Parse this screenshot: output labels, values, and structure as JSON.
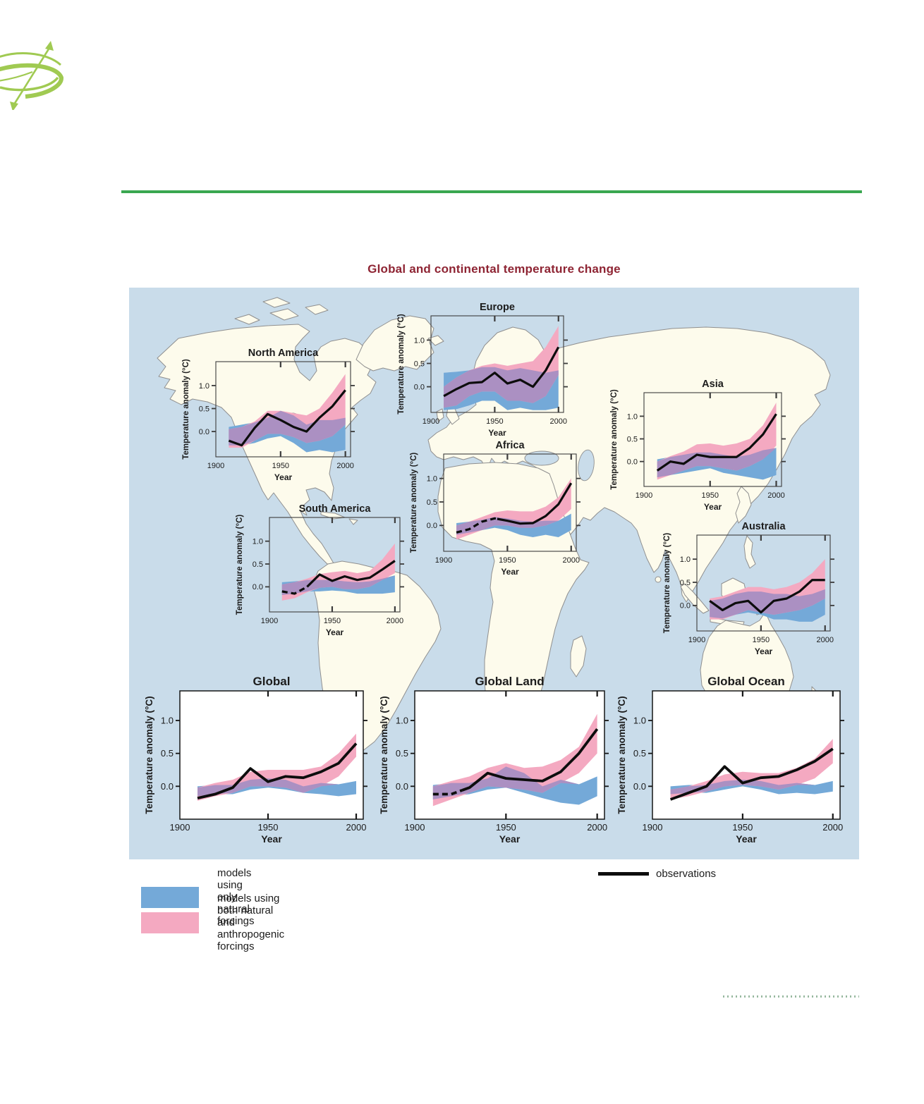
{
  "page": {
    "background": "#ffffff"
  },
  "logo": {
    "color": "#a0ca52"
  },
  "rules": {
    "top_rule_color": "#3aa750",
    "dotted_rule_color": "#98b9a0"
  },
  "figure": {
    "title": "Global and continental temperature change",
    "title_color": "#8e2433",
    "ocean_color": "#c9dcea",
    "land_color": "#fdfbec",
    "land_border_color": "#8f8f8f"
  },
  "legend": {
    "natural": {
      "label": "models using only natural forcings",
      "color": "#74a9d8"
    },
    "combined": {
      "label": "models using both natural and anthropogenic forcings",
      "color": "#f4a9c1"
    },
    "observations": {
      "label": "observations",
      "color": "#0d0d0d"
    }
  },
  "colors": {
    "natural_band": "#74a9d8",
    "combined_band": "#f4a9c1",
    "overlap_band": "#ab90c2",
    "observations_line": "#0d0d0d",
    "frame_regional": "#3c3c3c",
    "frame_global": "#161616",
    "text": "#1c1c1c"
  },
  "chart_data": [
    {
      "type": "area+line",
      "title": "North America",
      "ylabel": "Temperature anomaly (°C)",
      "xlabel": "Year",
      "xticks": [
        1900,
        1950,
        2000
      ],
      "yticks": [
        "1.0",
        "0.5",
        "0.0"
      ],
      "xlim": [
        1900,
        2004
      ],
      "ylim": [
        -0.55,
        1.52
      ],
      "years": [
        1910,
        1920,
        1930,
        1940,
        1950,
        1960,
        1970,
        1980,
        1990,
        2000
      ],
      "observations": [
        -0.2,
        -0.3,
        0.08,
        0.38,
        0.25,
        0.1,
        0.0,
        0.3,
        0.55,
        0.9
      ],
      "dashed_until": null,
      "natural_band": {
        "upper": [
          0.1,
          0.15,
          0.2,
          0.3,
          0.45,
          0.35,
          0.15,
          0.25,
          0.25,
          0.3
        ],
        "lower": [
          -0.3,
          -0.3,
          -0.25,
          -0.15,
          -0.1,
          -0.25,
          -0.45,
          -0.4,
          -0.45,
          -0.4
        ]
      },
      "combined_band": {
        "upper": [
          0.05,
          0.1,
          0.22,
          0.45,
          0.45,
          0.4,
          0.35,
          0.5,
          0.85,
          1.25
        ],
        "lower": [
          -0.35,
          -0.35,
          -0.2,
          -0.05,
          -0.05,
          -0.12,
          -0.25,
          -0.2,
          -0.1,
          0.15
        ]
      }
    },
    {
      "type": "area+line",
      "title": "Europe",
      "ylabel": "Temperature anomaly (°C)",
      "xlabel": "Year",
      "xticks": [
        1900,
        1950,
        2000
      ],
      "yticks": [
        "1.0",
        "0.5",
        "0.0"
      ],
      "xlim": [
        1900,
        2004
      ],
      "ylim": [
        -0.55,
        1.52
      ],
      "years": [
        1910,
        1920,
        1930,
        1940,
        1950,
        1960,
        1970,
        1980,
        1990,
        2000
      ],
      "observations": [
        -0.2,
        -0.05,
        0.08,
        0.1,
        0.3,
        0.07,
        0.15,
        0.0,
        0.35,
        0.85
      ],
      "dashed_until": null,
      "natural_band": {
        "upper": [
          0.3,
          0.32,
          0.35,
          0.42,
          0.42,
          0.35,
          0.4,
          0.35,
          0.3,
          0.35
        ],
        "lower": [
          -0.5,
          -0.48,
          -0.4,
          -0.3,
          -0.3,
          -0.5,
          -0.45,
          -0.5,
          -0.5,
          -0.45
        ]
      },
      "combined_band": {
        "upper": [
          0.0,
          0.2,
          0.35,
          0.45,
          0.5,
          0.45,
          0.5,
          0.55,
          0.85,
          1.3
        ],
        "lower": [
          -0.45,
          -0.4,
          -0.2,
          -0.1,
          -0.1,
          -0.3,
          -0.3,
          -0.35,
          -0.2,
          0.25
        ]
      }
    },
    {
      "type": "area+line",
      "title": "Asia",
      "ylabel": "Temperature anomaly (°C)",
      "xlabel": "Year",
      "xticks": [
        1900,
        1950,
        2000
      ],
      "yticks": [
        "1.0",
        "0.5",
        "0.0"
      ],
      "xlim": [
        1900,
        2004
      ],
      "ylim": [
        -0.55,
        1.52
      ],
      "years": [
        1910,
        1920,
        1930,
        1940,
        1950,
        1960,
        1970,
        1980,
        1990,
        2000
      ],
      "observations": [
        -0.2,
        0.0,
        -0.05,
        0.15,
        0.1,
        0.1,
        0.1,
        0.3,
        0.6,
        1.05
      ],
      "dashed_until": null,
      "natural_band": {
        "upper": [
          0.05,
          0.1,
          0.15,
          0.2,
          0.2,
          0.15,
          0.1,
          0.15,
          0.25,
          0.3
        ],
        "lower": [
          -0.35,
          -0.3,
          -0.25,
          -0.2,
          -0.15,
          -0.25,
          -0.3,
          -0.35,
          -0.4,
          -0.3
        ]
      },
      "combined_band": {
        "upper": [
          0.0,
          0.12,
          0.22,
          0.38,
          0.4,
          0.35,
          0.4,
          0.5,
          0.8,
          1.3
        ],
        "lower": [
          -0.4,
          -0.3,
          -0.2,
          -0.1,
          -0.1,
          -0.15,
          -0.2,
          -0.1,
          0.05,
          0.35
        ]
      }
    },
    {
      "type": "area+line",
      "title": "South America",
      "ylabel": "Temperature anomaly (°C)",
      "xlabel": "Year",
      "xticks": [
        1900,
        1950,
        2000
      ],
      "yticks": [
        "1.0",
        "0.5",
        "0.0"
      ],
      "xlim": [
        1900,
        2004
      ],
      "ylim": [
        -0.55,
        1.52
      ],
      "years": [
        1910,
        1920,
        1930,
        1940,
        1950,
        1960,
        1970,
        1980,
        1990,
        2000
      ],
      "observations": [
        -0.1,
        -0.15,
        0.0,
        0.27,
        0.13,
        0.23,
        0.15,
        0.2,
        0.38,
        0.57
      ],
      "dashed_until": 1930,
      "natural_band": {
        "upper": [
          0.1,
          0.12,
          0.15,
          0.15,
          0.15,
          0.12,
          0.1,
          0.12,
          0.18,
          0.25
        ],
        "lower": [
          -0.18,
          -0.15,
          -0.1,
          -0.1,
          -0.08,
          -0.1,
          -0.15,
          -0.15,
          -0.15,
          -0.12
        ]
      },
      "combined_band": {
        "upper": [
          0.05,
          0.1,
          0.18,
          0.28,
          0.32,
          0.35,
          0.3,
          0.35,
          0.6,
          0.95
        ],
        "lower": [
          -0.3,
          -0.25,
          -0.12,
          -0.02,
          0.0,
          -0.05,
          -0.05,
          0.0,
          0.15,
          0.3
        ]
      }
    },
    {
      "type": "area+line",
      "title": "Africa",
      "ylabel": "Temperature anomaly (°C)",
      "xlabel": "Year",
      "xticks": [
        1900,
        1950,
        2000
      ],
      "yticks": [
        "1.0",
        "0.5",
        "0.0"
      ],
      "xlim": [
        1900,
        2004
      ],
      "ylim": [
        -0.55,
        1.52
      ],
      "years": [
        1910,
        1920,
        1930,
        1940,
        1950,
        1960,
        1970,
        1980,
        1990,
        2000
      ],
      "observations": [
        -0.15,
        -0.08,
        0.08,
        0.15,
        0.1,
        0.04,
        0.05,
        0.2,
        0.45,
        0.9
      ],
      "dashed_until": 1942,
      "natural_band": {
        "upper": [
          0.05,
          0.08,
          0.12,
          0.18,
          0.15,
          0.1,
          0.08,
          0.1,
          0.1,
          0.25
        ],
        "lower": [
          -0.2,
          -0.15,
          -0.1,
          -0.05,
          -0.1,
          -0.2,
          -0.25,
          -0.2,
          -0.25,
          -0.1
        ]
      },
      "combined_band": {
        "upper": [
          0.0,
          0.08,
          0.18,
          0.28,
          0.32,
          0.3,
          0.3,
          0.4,
          0.6,
          1.0
        ],
        "lower": [
          -0.3,
          -0.2,
          -0.1,
          0.0,
          0.0,
          -0.05,
          -0.05,
          0.0,
          0.1,
          0.35
        ]
      }
    },
    {
      "type": "area+line",
      "title": "Australia",
      "ylabel": "Temperature anomaly (°C)",
      "xlabel": "Year",
      "xticks": [
        1900,
        1950,
        2000
      ],
      "yticks": [
        "1.0",
        "0.5",
        "0.0"
      ],
      "xlim": [
        1900,
        2004
      ],
      "ylim": [
        -0.55,
        1.52
      ],
      "years": [
        1910,
        1920,
        1930,
        1940,
        1950,
        1960,
        1970,
        1980,
        1990,
        2000
      ],
      "observations": [
        0.1,
        -0.1,
        0.05,
        0.1,
        -0.15,
        0.1,
        0.15,
        0.3,
        0.55,
        0.55
      ],
      "dashed_until": null,
      "natural_band": {
        "upper": [
          0.1,
          0.15,
          0.25,
          0.3,
          0.3,
          0.25,
          0.25,
          0.2,
          0.25,
          0.35
        ],
        "lower": [
          -0.25,
          -0.28,
          -0.2,
          -0.15,
          -0.2,
          -0.3,
          -0.3,
          -0.35,
          -0.35,
          -0.2
        ]
      },
      "combined_band": {
        "upper": [
          0.15,
          0.2,
          0.3,
          0.4,
          0.4,
          0.35,
          0.4,
          0.5,
          0.7,
          1.0
        ],
        "lower": [
          -0.3,
          -0.3,
          -0.2,
          -0.1,
          -0.15,
          -0.2,
          -0.15,
          -0.1,
          0.0,
          0.15
        ]
      }
    },
    {
      "type": "area+line",
      "title": "Global",
      "ylabel": "Temperature anomaly (°C)",
      "xlabel": "Year",
      "xticks": [
        1900,
        1950,
        2000
      ],
      "yticks": [
        "1.0",
        "0.5",
        "0.0"
      ],
      "xlim": [
        1900,
        2004
      ],
      "ylim": [
        -0.5,
        1.45
      ],
      "years": [
        1910,
        1920,
        1930,
        1940,
        1950,
        1960,
        1970,
        1980,
        1990,
        2000
      ],
      "observations": [
        -0.18,
        -0.12,
        -0.02,
        0.27,
        0.07,
        0.15,
        0.13,
        0.22,
        0.35,
        0.65
      ],
      "dashed_until": null,
      "natural_band": {
        "upper": [
          0.0,
          0.02,
          0.02,
          0.1,
          0.12,
          0.1,
          0.0,
          0.05,
          0.03,
          0.08
        ],
        "lower": [
          -0.15,
          -0.12,
          -0.12,
          -0.05,
          -0.02,
          -0.05,
          -0.1,
          -0.12,
          -0.15,
          -0.12
        ]
      },
      "combined_band": {
        "upper": [
          -0.02,
          0.05,
          0.1,
          0.22,
          0.25,
          0.25,
          0.25,
          0.3,
          0.5,
          0.8
        ],
        "lower": [
          -0.22,
          -0.15,
          -0.1,
          0.0,
          0.0,
          -0.02,
          -0.1,
          0.0,
          0.15,
          0.45
        ]
      }
    },
    {
      "type": "area+line",
      "title": "Global Land",
      "ylabel": "Temperature anomaly (°C)",
      "xlabel": "Year",
      "xticks": [
        1900,
        1950,
        2000
      ],
      "yticks": [
        "1.0",
        "0.5",
        "0.0"
      ],
      "xlim": [
        1900,
        2004
      ],
      "ylim": [
        -0.5,
        1.45
      ],
      "years": [
        1910,
        1920,
        1930,
        1940,
        1950,
        1960,
        1970,
        1980,
        1990,
        2000
      ],
      "observations": [
        -0.12,
        -0.12,
        -0.02,
        0.2,
        0.12,
        0.1,
        0.08,
        0.22,
        0.5,
        0.87
      ],
      "dashed_until": 1926,
      "natural_band": {
        "upper": [
          0.02,
          0.05,
          0.05,
          0.12,
          0.3,
          0.2,
          0.0,
          0.1,
          0.03,
          0.15
        ],
        "lower": [
          -0.2,
          -0.15,
          -0.12,
          -0.05,
          -0.02,
          -0.1,
          -0.18,
          -0.25,
          -0.28,
          -0.15
        ]
      },
      "combined_band": {
        "upper": [
          0.0,
          0.08,
          0.15,
          0.28,
          0.35,
          0.28,
          0.3,
          0.4,
          0.6,
          1.1
        ],
        "lower": [
          -0.3,
          -0.2,
          -0.1,
          0.0,
          -0.02,
          -0.05,
          -0.1,
          0.05,
          0.2,
          0.5
        ]
      }
    },
    {
      "type": "area+line",
      "title": "Global Ocean",
      "ylabel": "Temperature anomaly (°C)",
      "xlabel": "Year",
      "xticks": [
        1900,
        1950,
        2000
      ],
      "yticks": [
        "1.0",
        "0.5",
        "0.0"
      ],
      "xlim": [
        1900,
        2004
      ],
      "ylim": [
        -0.5,
        1.45
      ],
      "years": [
        1910,
        1920,
        1930,
        1940,
        1950,
        1960,
        1970,
        1980,
        1990,
        2000
      ],
      "observations": [
        -0.2,
        -0.1,
        0.0,
        0.3,
        0.05,
        0.13,
        0.15,
        0.25,
        0.38,
        0.57
      ],
      "dashed_until": null,
      "natural_band": {
        "upper": [
          0.0,
          0.02,
          0.02,
          0.08,
          0.1,
          0.08,
          0.02,
          0.05,
          0.02,
          0.08
        ],
        "lower": [
          -0.12,
          -0.1,
          -0.1,
          -0.05,
          0.0,
          -0.05,
          -0.12,
          -0.1,
          -0.12,
          -0.08
        ]
      },
      "combined_band": {
        "upper": [
          -0.05,
          0.0,
          0.08,
          0.18,
          0.22,
          0.2,
          0.2,
          0.28,
          0.42,
          0.72
        ],
        "lower": [
          -0.2,
          -0.15,
          -0.08,
          0.0,
          0.02,
          0.0,
          -0.05,
          0.02,
          0.12,
          0.35
        ]
      }
    }
  ]
}
